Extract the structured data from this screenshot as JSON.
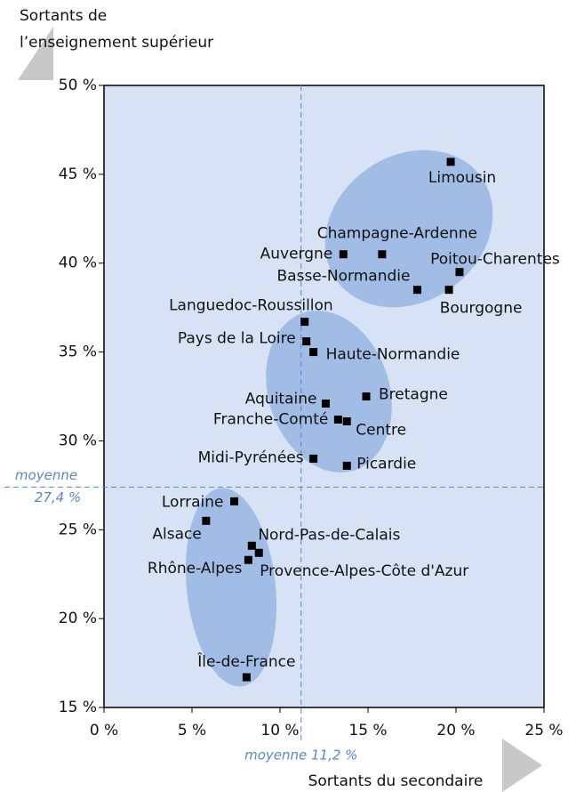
{
  "chart_data": {
    "type": "scatter",
    "y_label": [
      "Sortants de",
      "l’enseignement supérieur"
    ],
    "x_label": "Sortants du secondaire",
    "xlim": [
      0,
      25
    ],
    "ylim": [
      15,
      50
    ],
    "xticks": [
      {
        "value": 0,
        "label": "0 %"
      },
      {
        "value": 5,
        "label": "5 %"
      },
      {
        "value": 10,
        "label": "10 %"
      },
      {
        "value": 15,
        "label": "15 %"
      },
      {
        "value": 20,
        "label": "20 %"
      },
      {
        "value": 25,
        "label": "25 %"
      }
    ],
    "yticks": [
      {
        "value": 15,
        "label": "15 %"
      },
      {
        "value": 20,
        "label": "20 %"
      },
      {
        "value": 25,
        "label": "25 %"
      },
      {
        "value": 30,
        "label": "30 %"
      },
      {
        "value": 35,
        "label": "35 %"
      },
      {
        "value": 40,
        "label": "40 %"
      },
      {
        "value": 45,
        "label": "45 %"
      },
      {
        "value": 50,
        "label": "50 %"
      }
    ],
    "mean_x": 11.2,
    "mean_x_label": "moyenne 11,2 %",
    "mean_y": 27.4,
    "mean_y_label": [
      "moyenne",
      "27,4 %"
    ],
    "color": "#000000",
    "labels": [
      "Limousin",
      "Champagne-Ardenne",
      "Auvergne",
      "Poitou-Charentes",
      "Basse-Normandie",
      "Bourgogne",
      "Languedoc-Roussillon",
      "Pays de la Loire",
      "Haute-Normandie",
      "Aquitaine",
      "Bretagne",
      "Franche-Comté",
      "Centre",
      "Midi-Pyrénées",
      "Picardie",
      "Lorraine",
      "Alsace",
      "Nord-Pas-de-Calais",
      "Provence-Alpes-Côte d'Azur",
      "Rhône-Alpes",
      "Île-de-France"
    ],
    "x": [
      19.7,
      15.8,
      13.6,
      20.2,
      17.8,
      19.6,
      11.4,
      11.5,
      11.9,
      12.6,
      14.9,
      13.3,
      13.8,
      11.9,
      13.8,
      7.4,
      5.8,
      8.4,
      8.8,
      8.2,
      8.1
    ],
    "y": [
      45.7,
      40.5,
      40.5,
      39.5,
      38.5,
      38.5,
      36.7,
      35.6,
      35.0,
      32.1,
      32.5,
      31.2,
      31.1,
      29.0,
      28.6,
      26.6,
      25.5,
      24.1,
      23.7,
      23.3,
      16.7
    ]
  }
}
